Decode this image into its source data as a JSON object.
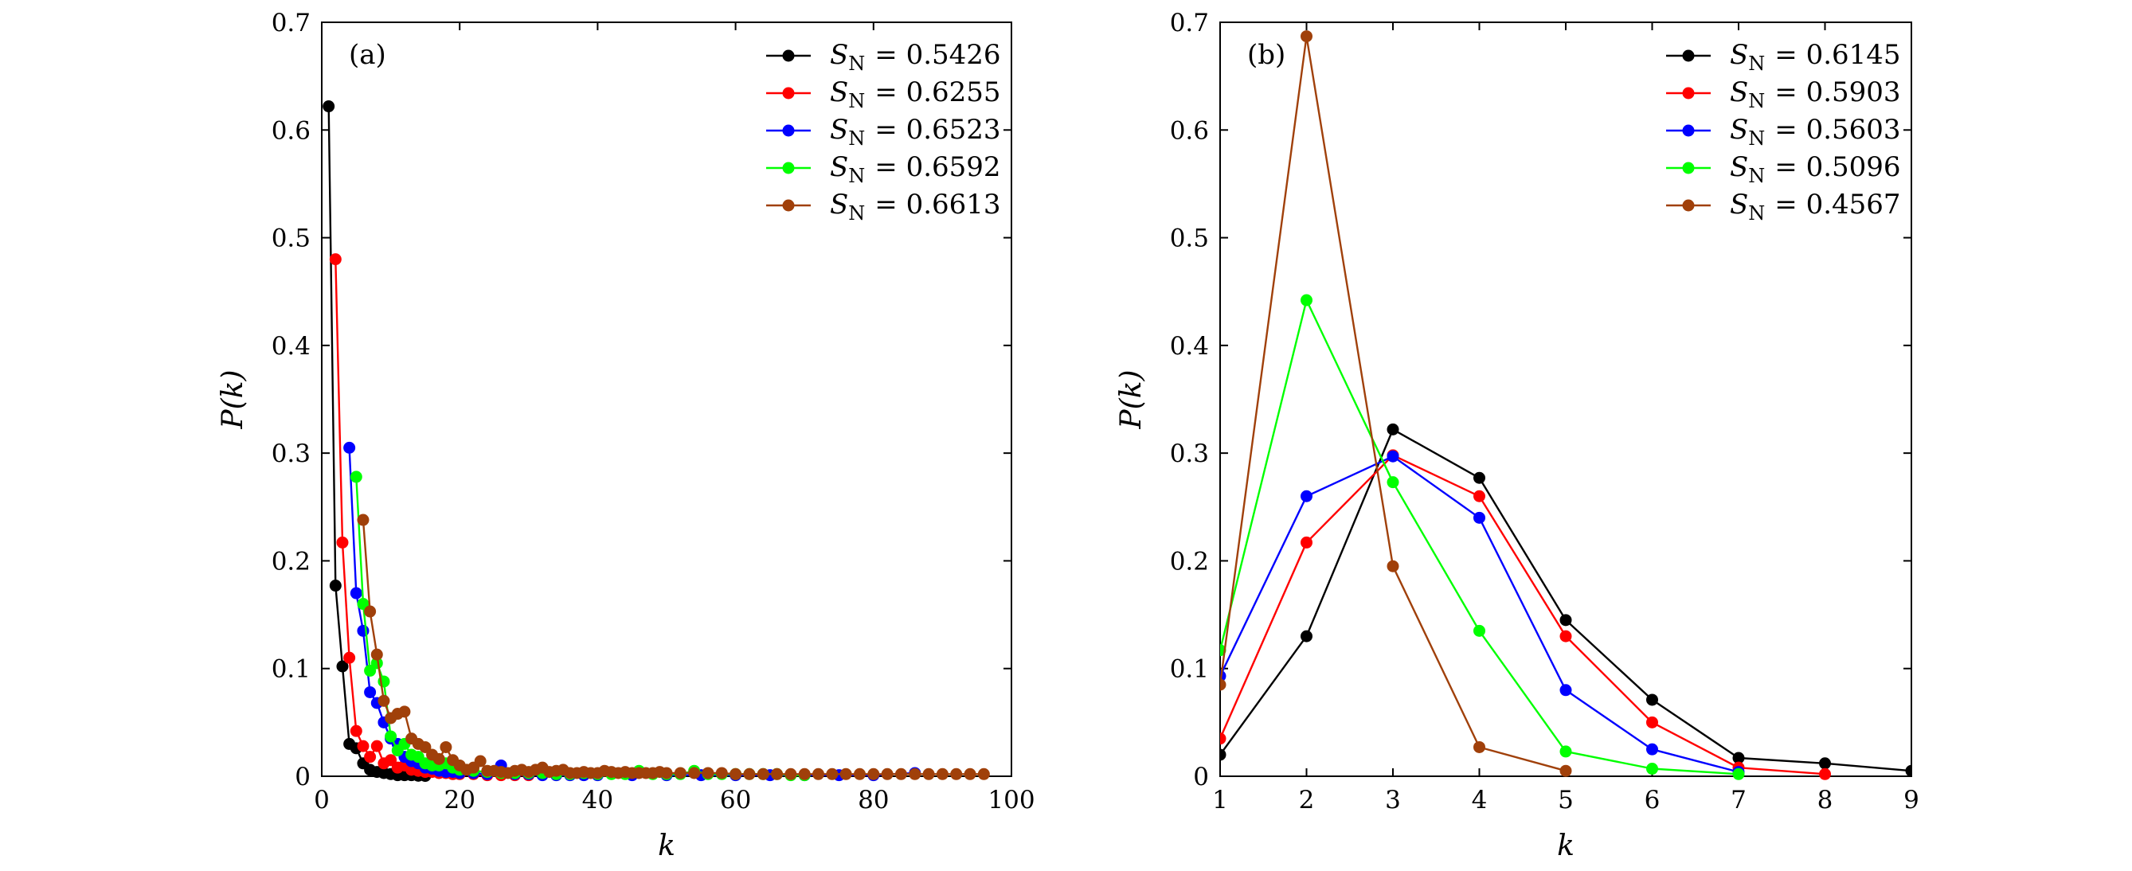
{
  "chart_data": [
    {
      "panel_label": "(a)",
      "type": "line",
      "xlabel": "k",
      "ylabel": "P(k)",
      "xlim": [
        0,
        100
      ],
      "ylim": [
        0,
        0.7
      ],
      "xticks": [
        0,
        20,
        40,
        60,
        80,
        100
      ],
      "yticks": [
        0,
        0.1,
        0.2,
        0.3,
        0.4,
        0.5,
        0.6,
        0.7
      ],
      "xtick_labels": [
        "0",
        "20",
        "40",
        "60",
        "80",
        "100"
      ],
      "ytick_labels": [
        "0",
        "0.1",
        "0.2",
        "0.3",
        "0.4",
        "0.5",
        "0.6",
        "0.7"
      ],
      "legend_position": "top-right",
      "grid": false,
      "series": [
        {
          "legend_sym": "S",
          "legend_sub": "N",
          "legend_value": "= 0.5426",
          "color": "#000000",
          "x": [
            1,
            2,
            3,
            4,
            5,
            6,
            7,
            8,
            9,
            10,
            11,
            12,
            13,
            14,
            15
          ],
          "y": [
            0.622,
            0.177,
            0.102,
            0.03,
            0.026,
            0.012,
            0.006,
            0.004,
            0.003,
            0.002,
            0.001,
            0.001,
            0.001,
            0.0005,
            0.0003
          ]
        },
        {
          "legend_sym": "S",
          "legend_sub": "N",
          "legend_value": "= 0.6255",
          "color": "#ff0000",
          "x": [
            2,
            3,
            4,
            5,
            6,
            7,
            8,
            9,
            10,
            11,
            12,
            13,
            14,
            15,
            16,
            17,
            18,
            19,
            20,
            22,
            24,
            26,
            28,
            30
          ],
          "y": [
            0.48,
            0.217,
            0.11,
            0.042,
            0.028,
            0.018,
            0.028,
            0.012,
            0.015,
            0.008,
            0.01,
            0.006,
            0.005,
            0.004,
            0.004,
            0.003,
            0.003,
            0.002,
            0.002,
            0.002,
            0.001,
            0.001,
            0.001,
            0.001
          ]
        },
        {
          "legend_sym": "S",
          "legend_sub": "N",
          "legend_value": "= 0.6523",
          "color": "#0000ff",
          "x": [
            4,
            5,
            6,
            7,
            8,
            9,
            10,
            11,
            12,
            13,
            14,
            15,
            16,
            17,
            18,
            19,
            20,
            22,
            24,
            26,
            28,
            30,
            32,
            34,
            36,
            38,
            40,
            45,
            50,
            55,
            60,
            65,
            70,
            75,
            80,
            86
          ],
          "y": [
            0.305,
            0.17,
            0.135,
            0.078,
            0.068,
            0.05,
            0.035,
            0.03,
            0.018,
            0.014,
            0.012,
            0.008,
            0.007,
            0.005,
            0.004,
            0.004,
            0.003,
            0.003,
            0.002,
            0.01,
            0.002,
            0.002,
            0.001,
            0.001,
            0.001,
            0.001,
            0.001,
            0.001,
            0.001,
            0.001,
            0.001,
            0.001,
            0.001,
            0.001,
            0.001,
            0.003
          ]
        },
        {
          "legend_sym": "S",
          "legend_sub": "N",
          "legend_value": "= 0.6592",
          "color": "#00ff00",
          "x": [
            5,
            6,
            7,
            8,
            9,
            10,
            11,
            12,
            13,
            14,
            15,
            16,
            17,
            18,
            19,
            20,
            22,
            24,
            26,
            28,
            30,
            32,
            34,
            36,
            38,
            40,
            42,
            44,
            46,
            48,
            50,
            52,
            54,
            56,
            58,
            60,
            62,
            64,
            66,
            68,
            70
          ],
          "y": [
            0.278,
            0.16,
            0.098,
            0.105,
            0.088,
            0.037,
            0.024,
            0.03,
            0.02,
            0.018,
            0.012,
            0.01,
            0.01,
            0.012,
            0.008,
            0.006,
            0.005,
            0.004,
            0.003,
            0.003,
            0.003,
            0.003,
            0.002,
            0.002,
            0.003,
            0.002,
            0.002,
            0.002,
            0.005,
            0.002,
            0.002,
            0.002,
            0.005,
            0.002,
            0.002,
            0.002,
            0.002,
            0.002,
            0.002,
            0.001,
            0.001
          ]
        },
        {
          "legend_sym": "S",
          "legend_sub": "N",
          "legend_value": "= 0.6613",
          "color": "#a0400a",
          "x": [
            6,
            7,
            8,
            9,
            10,
            11,
            12,
            13,
            14,
            15,
            16,
            17,
            18,
            19,
            20,
            21,
            22,
            23,
            24,
            25,
            26,
            27,
            28,
            29,
            30,
            31,
            32,
            33,
            34,
            35,
            36,
            37,
            38,
            39,
            40,
            41,
            42,
            43,
            44,
            45,
            46,
            47,
            48,
            49,
            50,
            52,
            54,
            56,
            58,
            60,
            62,
            64,
            66,
            68,
            70,
            72,
            74,
            76,
            78,
            80,
            82,
            84,
            86,
            88,
            90,
            92,
            94,
            96
          ],
          "y": [
            0.238,
            0.153,
            0.113,
            0.07,
            0.054,
            0.058,
            0.06,
            0.035,
            0.03,
            0.027,
            0.02,
            0.016,
            0.027,
            0.015,
            0.01,
            0.006,
            0.008,
            0.014,
            0.005,
            0.005,
            0.004,
            0.003,
            0.005,
            0.006,
            0.004,
            0.006,
            0.008,
            0.004,
            0.005,
            0.006,
            0.003,
            0.003,
            0.004,
            0.003,
            0.003,
            0.005,
            0.004,
            0.003,
            0.004,
            0.003,
            0.003,
            0.003,
            0.003,
            0.004,
            0.003,
            0.003,
            0.003,
            0.003,
            0.003,
            0.002,
            0.002,
            0.002,
            0.002,
            0.002,
            0.002,
            0.002,
            0.002,
            0.002,
            0.002,
            0.002,
            0.002,
            0.002,
            0.002,
            0.002,
            0.002,
            0.002,
            0.002,
            0.002
          ]
        }
      ]
    },
    {
      "panel_label": "(b)",
      "type": "line",
      "xlabel": "k",
      "ylabel": "P(k)",
      "xlim": [
        1,
        9
      ],
      "ylim": [
        0,
        0.7
      ],
      "xticks": [
        1,
        2,
        3,
        4,
        5,
        6,
        7,
        8,
        9
      ],
      "yticks": [
        0,
        0.1,
        0.2,
        0.3,
        0.4,
        0.5,
        0.6,
        0.7
      ],
      "xtick_labels": [
        "1",
        "2",
        "3",
        "4",
        "5",
        "6",
        "7",
        "8",
        "9"
      ],
      "ytick_labels": [
        "0",
        "0.1",
        "0.2",
        "0.3",
        "0.4",
        "0.5",
        "0.6",
        "0.7"
      ],
      "legend_position": "top-right",
      "grid": false,
      "series": [
        {
          "legend_sym": "S",
          "legend_sub": "N",
          "legend_value": "= 0.6145",
          "color": "#000000",
          "x": [
            1,
            2,
            3,
            4,
            5,
            6,
            7,
            8,
            9
          ],
          "y": [
            0.02,
            0.13,
            0.322,
            0.277,
            0.145,
            0.071,
            0.017,
            0.012,
            0.005
          ]
        },
        {
          "legend_sym": "S",
          "legend_sub": "N",
          "legend_value": "= 0.5903",
          "color": "#ff0000",
          "x": [
            1,
            2,
            3,
            4,
            5,
            6,
            7,
            8
          ],
          "y": [
            0.035,
            0.217,
            0.298,
            0.26,
            0.13,
            0.05,
            0.008,
            0.002
          ]
        },
        {
          "legend_sym": "S",
          "legend_sub": "N",
          "legend_value": "= 0.5603",
          "color": "#0000ff",
          "x": [
            1,
            2,
            3,
            4,
            5,
            6,
            7
          ],
          "y": [
            0.093,
            0.26,
            0.297,
            0.24,
            0.08,
            0.025,
            0.004
          ]
        },
        {
          "legend_sym": "S",
          "legend_sub": "N",
          "legend_value": "= 0.5096",
          "color": "#00ff00",
          "x": [
            1,
            2,
            3,
            4,
            5,
            6,
            7
          ],
          "y": [
            0.117,
            0.442,
            0.273,
            0.135,
            0.023,
            0.007,
            0.002
          ]
        },
        {
          "legend_sym": "S",
          "legend_sub": "N",
          "legend_value": "= 0.4567",
          "color": "#a0400a",
          "x": [
            1,
            2,
            3,
            4,
            5
          ],
          "y": [
            0.085,
            0.687,
            0.195,
            0.027,
            0.005
          ]
        }
      ]
    }
  ]
}
